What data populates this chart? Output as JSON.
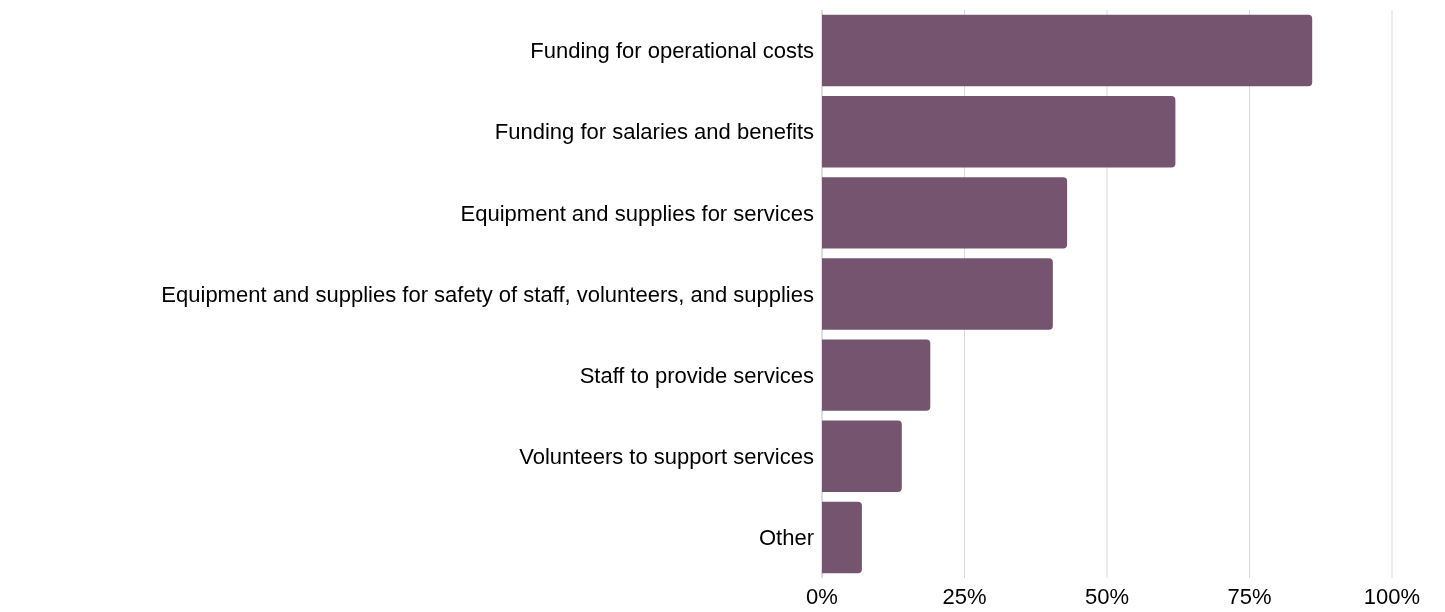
{
  "chart_data": {
    "type": "bar",
    "orientation": "horizontal",
    "categories": [
      "Funding for operational costs",
      "Funding for salaries and benefits",
      "Equipment and supplies for services",
      "Equipment and supplies for safety of staff, volunteers, and supplies",
      "Staff to provide services",
      "Volunteers to support services",
      "Other"
    ],
    "values": [
      86,
      62,
      43,
      40.5,
      19,
      14,
      7
    ],
    "color": "#74546f",
    "xlim": [
      0,
      100
    ],
    "xticks": [
      {
        "value": 0,
        "label": "0%"
      },
      {
        "value": 25,
        "label": "25%"
      },
      {
        "value": 50,
        "label": "50%"
      },
      {
        "value": 75,
        "label": "75%"
      },
      {
        "value": 100,
        "label": "100%"
      }
    ],
    "grid": "x"
  }
}
